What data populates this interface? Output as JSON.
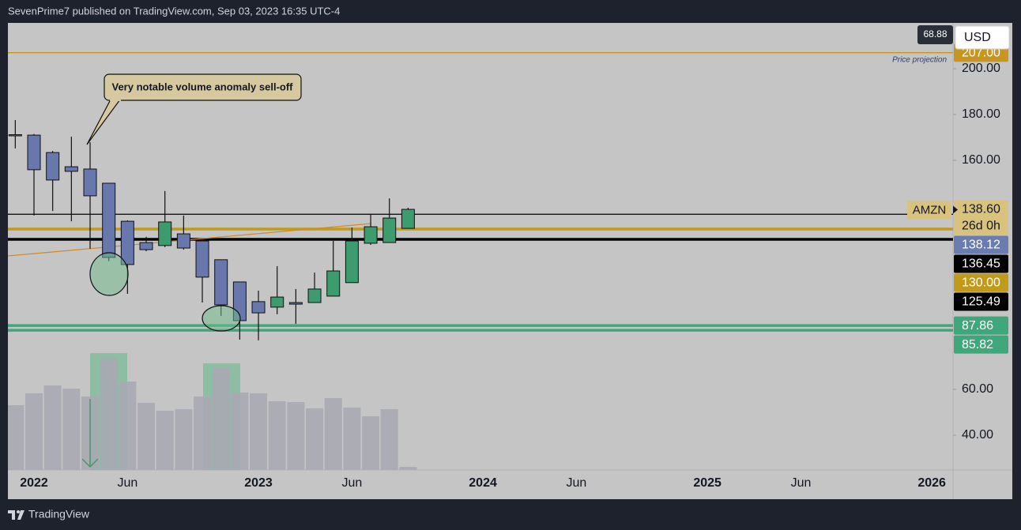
{
  "header": {
    "text": "SevenPrime7 published on TradingView.com, Sep 03, 2023 16:35 UTC-4"
  },
  "footer": {
    "brand": "TradingView"
  },
  "chart_data": {
    "type": "candlestick",
    "symbol": "AMZN",
    "currency": "USD",
    "scale_label": 68.88,
    "callout": "Very notable volume anomaly sell-off",
    "x": [
      "2021-12",
      "2022-01",
      "2022-02",
      "2022-03",
      "2022-04",
      "2022-05",
      "2022-06",
      "2022-07",
      "2022-08",
      "2022-09",
      "2022-10",
      "2022-11",
      "2022-12",
      "2023-01",
      "2023-02",
      "2023-03",
      "2023-04",
      "2023-05",
      "2023-06",
      "2023-07",
      "2023-08",
      "2023-09"
    ],
    "open": [
      171.2,
      171.0,
      163.4,
      157.2,
      156.2,
      150.0,
      133.4,
      124.1,
      122.8,
      127.9,
      124.8,
      116.6,
      106.9,
      98.3,
      95.9,
      97.9,
      97.9,
      100.7,
      106.6,
      123.8,
      124.1,
      130.3
    ],
    "high": [
      177.6,
      171.5,
      164.1,
      170.3,
      167.9,
      150.0,
      133.8,
      126.6,
      146.6,
      135.9,
      124.8,
      116.6,
      106.9,
      103.1,
      113.8,
      103.8,
      111.0,
      124.8,
      130.7,
      136.6,
      143.4,
      139.3
    ],
    "low": [
      165.2,
      135.9,
      137.9,
      133.4,
      121.4,
      116.0,
      101.7,
      120.3,
      122.1,
      121.0,
      97.9,
      92.1,
      81.7,
      81.4,
      92.8,
      88.6,
      97.9,
      100.7,
      106.6,
      123.1,
      124.1,
      130.3
    ],
    "close": [
      171.0,
      155.9,
      151.4,
      155.2,
      144.5,
      117.6,
      114.5,
      121.0,
      133.1,
      121.7,
      109.0,
      96.9,
      90.0,
      93.4,
      100.3,
      97.2,
      103.8,
      111.7,
      124.8,
      131.0,
      134.8,
      138.6
    ],
    "up_color": "#3d9c6e",
    "down_color": "#6878ad",
    "volume": [
      82,
      97,
      107,
      103,
      93,
      142,
      112,
      85,
      75,
      77,
      93,
      129,
      98,
      97,
      87,
      86,
      78,
      91,
      79,
      68,
      77,
      4
    ],
    "volume_color": "#a7a9b1",
    "ylim": [
      24.8,
      220
    ],
    "yticks": [
      {
        "value": 40,
        "label": "40.00"
      },
      {
        "value": 60,
        "label": "60.00"
      },
      {
        "value": 160,
        "label": "160.00"
      },
      {
        "value": 180,
        "label": "180.00"
      },
      {
        "value": 200,
        "label": "200.00"
      }
    ],
    "grid": false,
    "xticks": [
      {
        "value": "2022-01",
        "label": "2022"
      },
      {
        "value": "2022-06",
        "label": "Jun"
      },
      {
        "value": "2023-01",
        "label": "2023"
      },
      {
        "value": "2023-06",
        "label": "Jun"
      },
      {
        "value": "2024-01",
        "label": "2024"
      },
      {
        "value": "2024-06",
        "label": "Jun"
      },
      {
        "value": "2025-01",
        "label": "2025"
      },
      {
        "value": "2025-06",
        "label": "Jun"
      },
      {
        "value": "2026-01",
        "label": "2026"
      }
    ],
    "levels": [
      {
        "value": 207,
        "label": "207.00",
        "color": "#c8961e",
        "text_color": "#ffffff",
        "line": "thin",
        "note": "Price projection"
      },
      {
        "value": 138.6,
        "label": "138.60",
        "color": "#d8c27e",
        "text_color": "#131722",
        "line": "none",
        "countdown": "26d 0h"
      },
      {
        "value": 138.12,
        "color": "#6b7cae",
        "text_color": "#ffffff",
        "line": "none"
      },
      {
        "value": 136.45,
        "color": "#000000",
        "text_color": "#ffffff",
        "line": "thin"
      },
      {
        "value": 130,
        "label": "130.00",
        "color": "#c29a1a",
        "text_color": "#ffffff",
        "line": "thick"
      },
      {
        "value": 125.49,
        "color": "#000000",
        "text_color": "#ffffff",
        "line": "thick"
      },
      {
        "value": 87.86,
        "color": "#3fa77a",
        "text_color": "#ffffff",
        "line": "thick"
      },
      {
        "value": 85.82,
        "color": "#3fa77a",
        "text_color": "#ffffff",
        "line": "thick"
      }
    ]
  }
}
